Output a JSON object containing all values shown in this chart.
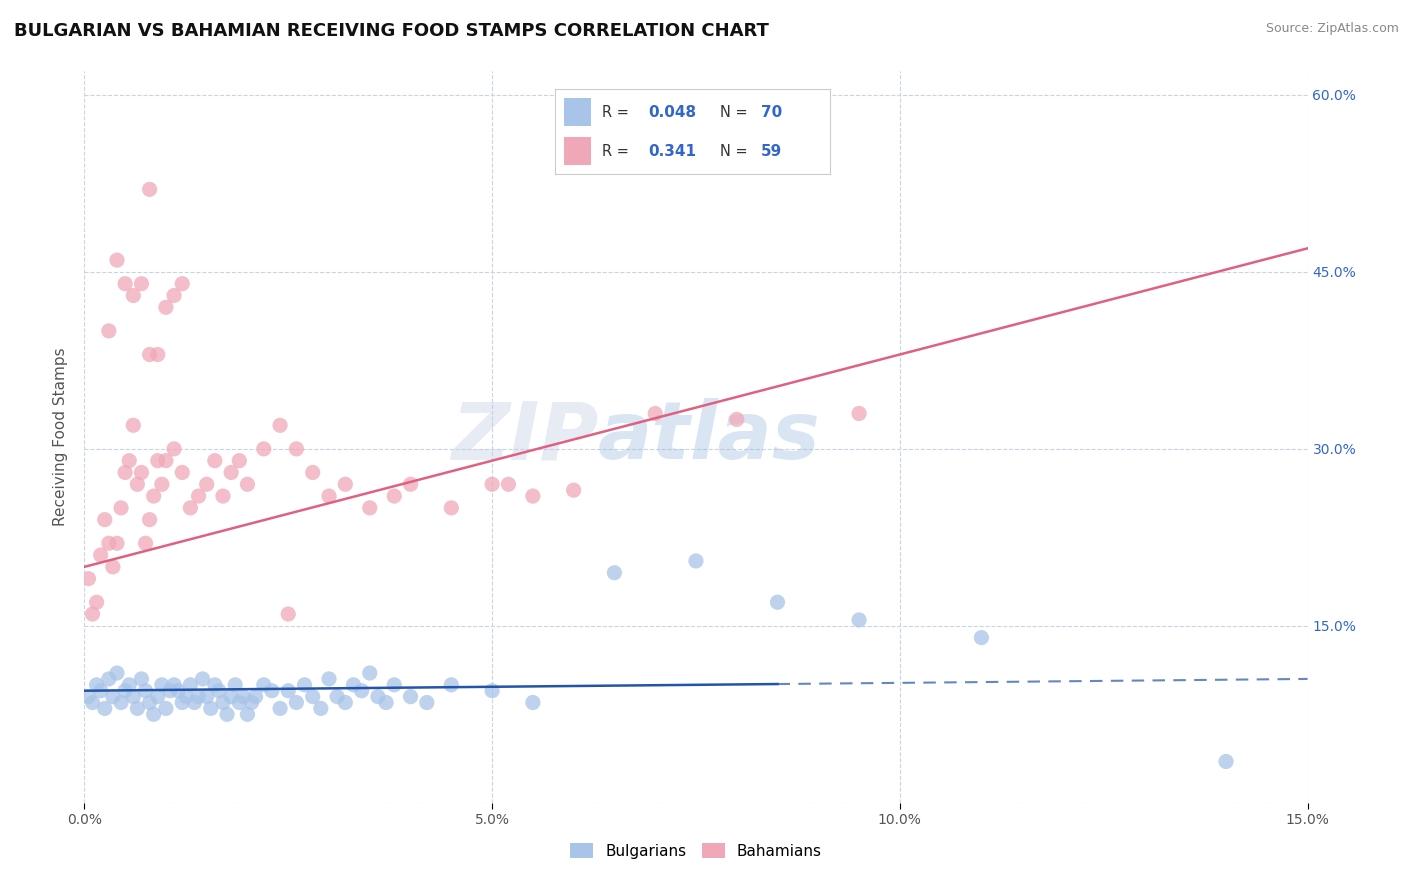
{
  "title": "BULGARIAN VS BAHAMIAN RECEIVING FOOD STAMPS CORRELATION CHART",
  "source": "Source: ZipAtlas.com",
  "ylabel": "Receiving Food Stamps",
  "xlim": [
    0.0,
    15.0
  ],
  "ylim": [
    0.0,
    62.0
  ],
  "bulgarian_R": 0.048,
  "bulgarian_N": 70,
  "bahamian_R": 0.341,
  "bahamian_N": 59,
  "bulgarian_color": "#a8c4e8",
  "bahamian_color": "#f0a8b8",
  "bulgarian_line_color": "#2255aa",
  "bahamian_line_color": "#e06080",
  "background_color": "#ffffff",
  "grid_color": "#c8d4e8",
  "watermark": "ZIPatlas",
  "bul_trend_y0": 9.5,
  "bul_trend_y15": 10.5,
  "bul_solid_end_x": 8.5,
  "bah_trend_y0": 20.0,
  "bah_trend_y15": 47.0,
  "bulgarians_x": [
    0.05,
    0.1,
    0.15,
    0.2,
    0.25,
    0.3,
    0.35,
    0.4,
    0.45,
    0.5,
    0.55,
    0.6,
    0.65,
    0.7,
    0.75,
    0.8,
    0.85,
    0.9,
    0.95,
    1.0,
    1.05,
    1.1,
    1.15,
    1.2,
    1.25,
    1.3,
    1.35,
    1.4,
    1.45,
    1.5,
    1.55,
    1.6,
    1.65,
    1.7,
    1.75,
    1.8,
    1.85,
    1.9,
    1.95,
    2.0,
    2.05,
    2.1,
    2.2,
    2.3,
    2.4,
    2.5,
    2.6,
    2.7,
    2.8,
    2.9,
    3.0,
    3.1,
    3.2,
    3.3,
    3.4,
    3.5,
    3.6,
    3.7,
    3.8,
    4.0,
    4.2,
    4.5,
    5.0,
    5.5,
    6.5,
    7.5,
    8.5,
    9.5,
    11.0,
    14.0
  ],
  "bulgarians_y": [
    9.0,
    8.5,
    10.0,
    9.5,
    8.0,
    10.5,
    9.0,
    11.0,
    8.5,
    9.5,
    10.0,
    9.0,
    8.0,
    10.5,
    9.5,
    8.5,
    7.5,
    9.0,
    10.0,
    8.0,
    9.5,
    10.0,
    9.5,
    8.5,
    9.0,
    10.0,
    8.5,
    9.0,
    10.5,
    9.0,
    8.0,
    10.0,
    9.5,
    8.5,
    7.5,
    9.0,
    10.0,
    8.5,
    9.0,
    7.5,
    8.5,
    9.0,
    10.0,
    9.5,
    8.0,
    9.5,
    8.5,
    10.0,
    9.0,
    8.0,
    10.5,
    9.0,
    8.5,
    10.0,
    9.5,
    11.0,
    9.0,
    8.5,
    10.0,
    9.0,
    8.5,
    10.0,
    9.5,
    8.5,
    19.5,
    20.5,
    17.0,
    15.5,
    14.0,
    3.5
  ],
  "bahamians_x": [
    0.05,
    0.1,
    0.15,
    0.2,
    0.25,
    0.3,
    0.35,
    0.4,
    0.45,
    0.5,
    0.55,
    0.6,
    0.65,
    0.7,
    0.75,
    0.8,
    0.85,
    0.9,
    0.95,
    1.0,
    1.1,
    1.2,
    1.3,
    1.4,
    1.5,
    1.6,
    1.7,
    1.8,
    1.9,
    2.0,
    2.2,
    2.4,
    2.6,
    2.8,
    3.0,
    3.2,
    3.5,
    3.8,
    4.0,
    4.5,
    5.0,
    5.5,
    6.0,
    7.0,
    8.0,
    9.5,
    5.2,
    2.5,
    0.3,
    0.4,
    0.5,
    0.6,
    0.7,
    0.8,
    0.9,
    1.0,
    1.1,
    1.2,
    0.8
  ],
  "bahamians_y": [
    19.0,
    16.0,
    17.0,
    21.0,
    24.0,
    22.0,
    20.0,
    22.0,
    25.0,
    28.0,
    29.0,
    32.0,
    27.0,
    28.0,
    22.0,
    24.0,
    26.0,
    29.0,
    27.0,
    29.0,
    30.0,
    28.0,
    25.0,
    26.0,
    27.0,
    29.0,
    26.0,
    28.0,
    29.0,
    27.0,
    30.0,
    32.0,
    30.0,
    28.0,
    26.0,
    27.0,
    25.0,
    26.0,
    27.0,
    25.0,
    27.0,
    26.0,
    26.5,
    33.0,
    32.5,
    33.0,
    27.0,
    16.0,
    40.0,
    46.0,
    44.0,
    43.0,
    44.0,
    38.0,
    38.0,
    42.0,
    43.0,
    44.0,
    52.0
  ]
}
